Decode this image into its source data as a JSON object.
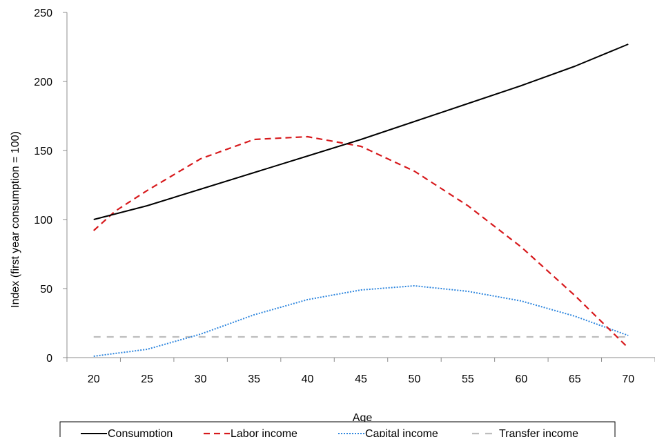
{
  "chart_data": {
    "type": "line",
    "title": "",
    "xlabel": "Age",
    "ylabel": "Index (first year consumption = 100)",
    "xlim": [
      17.5,
      72.5
    ],
    "ylim": [
      0,
      250
    ],
    "x_ticks": [
      20,
      25,
      30,
      35,
      40,
      45,
      50,
      55,
      60,
      65,
      70
    ],
    "y_ticks": [
      0,
      50,
      100,
      150,
      200,
      250
    ],
    "grid": false,
    "legend_position": "bottom",
    "series": [
      {
        "name": "Consumption",
        "color": "#000000",
        "style": "solid",
        "x": [
          20,
          25,
          30,
          35,
          40,
          45,
          50,
          55,
          60,
          65,
          70
        ],
        "y": [
          100,
          110,
          122,
          134,
          146,
          158,
          171,
          184,
          197,
          211,
          227
        ]
      },
      {
        "name": "Labor income",
        "color": "#d7191c",
        "style": "dashed",
        "x": [
          20,
          22,
          25,
          30,
          35,
          40,
          45,
          50,
          55,
          60,
          65,
          70
        ],
        "y": [
          92,
          106,
          121,
          144,
          158,
          160,
          153,
          135,
          110,
          80,
          45,
          7
        ]
      },
      {
        "name": "Capital income",
        "color": "#2e86de",
        "style": "dotted",
        "x": [
          20,
          25,
          30,
          35,
          40,
          45,
          50,
          55,
          60,
          65,
          70
        ],
        "y": [
          1,
          6,
          17,
          31,
          42,
          49,
          52,
          48,
          41,
          30,
          16
        ]
      },
      {
        "name": "Transfer income",
        "color": "#bdbdbd",
        "style": "dashed-long",
        "x": [
          20,
          25,
          30,
          35,
          40,
          45,
          50,
          55,
          60,
          65,
          70
        ],
        "y": [
          15,
          15,
          15,
          15,
          15,
          15,
          15,
          15,
          15,
          15,
          15
        ]
      }
    ]
  }
}
